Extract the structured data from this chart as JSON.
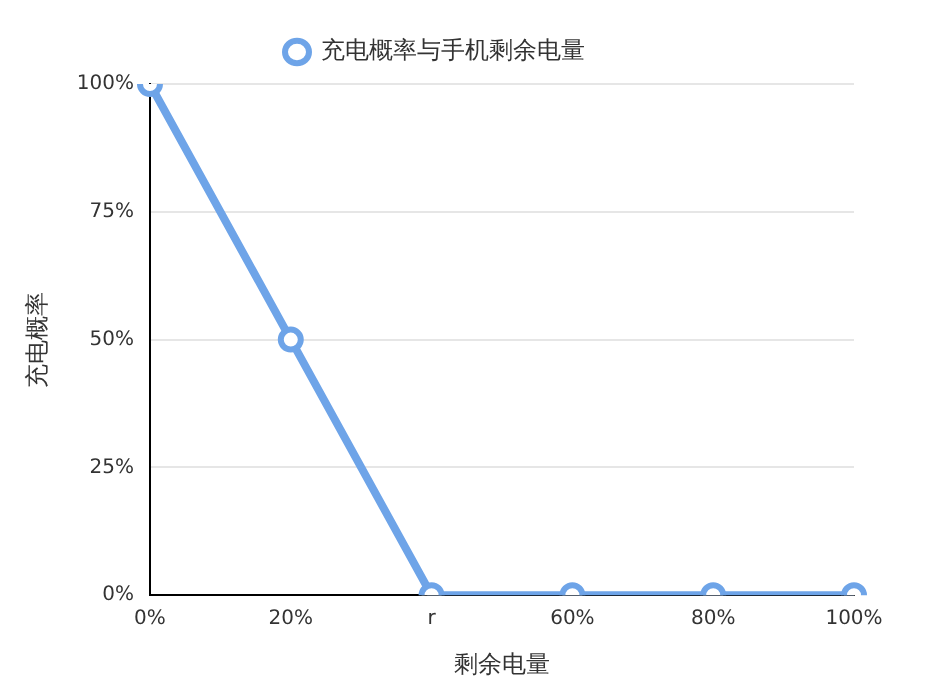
{
  "chart_data": {
    "type": "line",
    "xlabel": "剩余电量",
    "ylabel": "充电概率",
    "categories": [
      "0%",
      "20%",
      "r",
      "60%",
      "80%",
      "100%"
    ],
    "series": [
      {
        "name": "充电概率与手机剩余电量",
        "color": "#6ea4e8",
        "values": [
          100,
          50,
          0,
          0,
          0,
          0
        ]
      }
    ],
    "ylim": [
      0,
      100
    ],
    "yticks": [
      {
        "value": 0,
        "label": "0%"
      },
      {
        "value": 25,
        "label": "25%"
      },
      {
        "value": 50,
        "label": "50%"
      },
      {
        "value": 75,
        "label": "75%"
      },
      {
        "value": 100,
        "label": "100%"
      }
    ],
    "grid": "y",
    "legend": "top",
    "marker": "circle",
    "line_style": "solid"
  }
}
